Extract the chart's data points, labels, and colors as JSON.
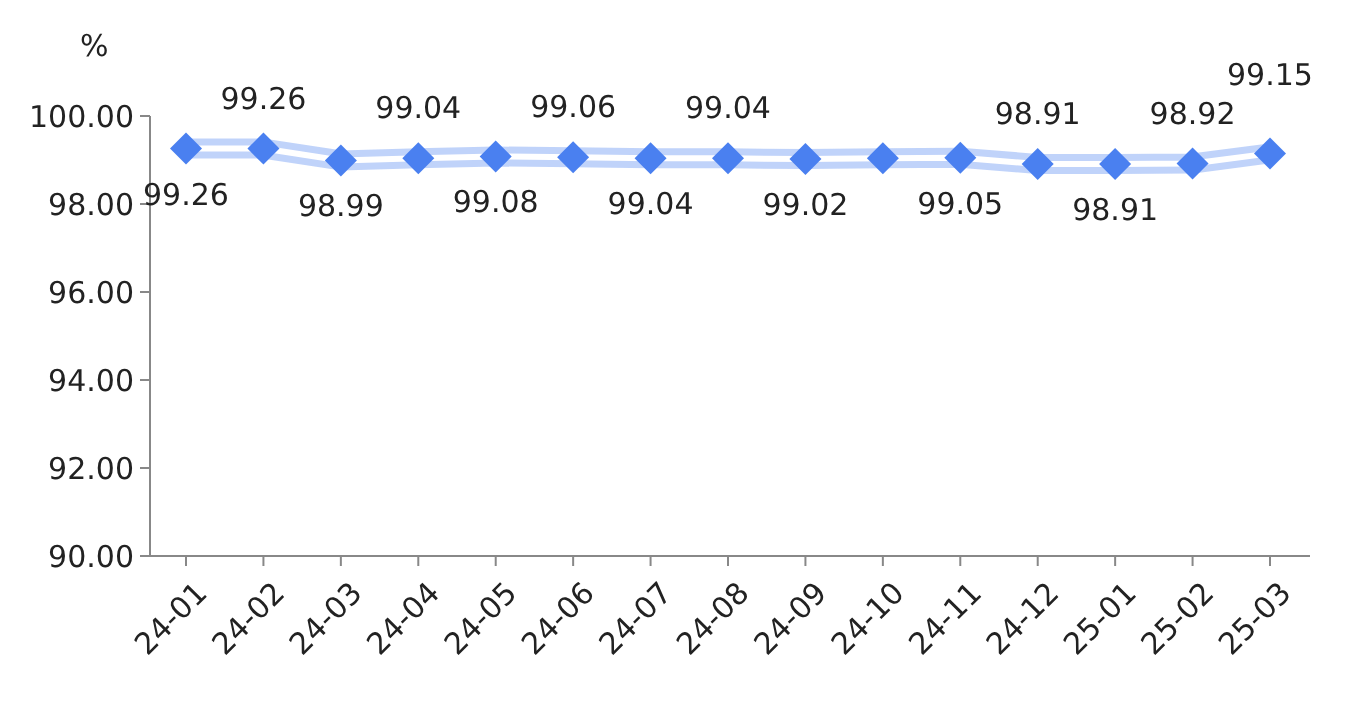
{
  "chart_data": {
    "type": "line",
    "ylabel": "%",
    "categories": [
      "24-01",
      "24-02",
      "24-03",
      "24-04",
      "24-05",
      "24-06",
      "24-07",
      "24-08",
      "24-09",
      "24-10",
      "24-11",
      "24-12",
      "25-01",
      "25-02",
      "25-03"
    ],
    "series": [
      {
        "color": "#4a80f0",
        "values": [
          99.26,
          99.26,
          98.99,
          99.04,
          99.08,
          99.06,
          99.04,
          99.04,
          99.02,
          99.04,
          99.05,
          98.91,
          98.91,
          98.92,
          99.15
        ],
        "value_labels": [
          "99.26",
          "99.26",
          "98.99",
          "99.04",
          "99.08",
          "99.06",
          "99.04",
          "99.04",
          "99.02",
          null,
          "99.05",
          "98.91",
          "98.91",
          "98.92",
          "99.15"
        ]
      }
    ],
    "ylim": [
      90,
      100
    ],
    "yticks": [
      {
        "value": 90,
        "label": "90.00"
      },
      {
        "value": 92,
        "label": "92.00"
      },
      {
        "value": 94,
        "label": "94.00"
      },
      {
        "value": 96,
        "label": "96.00"
      },
      {
        "value": 98,
        "label": "98.00"
      },
      {
        "value": 100,
        "label": "100.00"
      }
    ],
    "grid": false,
    "marker": "diamond",
    "line_style": "solid"
  }
}
